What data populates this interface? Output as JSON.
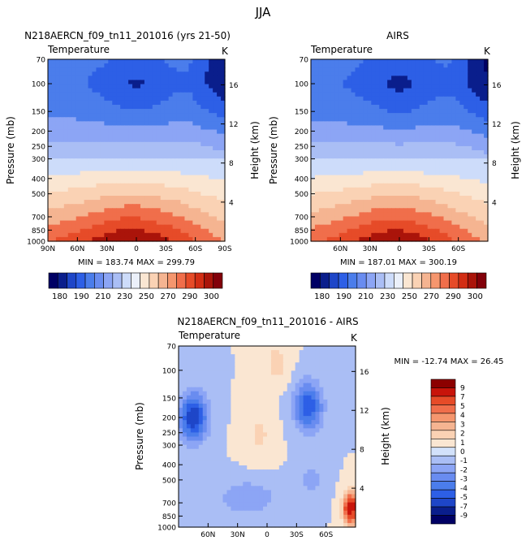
{
  "suptitle": "JJA",
  "chart_data": [
    {
      "type": "heatmap",
      "title": "N218AERCN_f09_tn11_201016 (yrs 21-50)",
      "subtitle_left": "Temperature",
      "subtitle_right": "K",
      "ylabel": "Pressure (mb)",
      "ylabel_right": "Height (km)",
      "x_ticks": [
        "90N",
        "60N",
        "30N",
        "0",
        "30S",
        "60S",
        "90S"
      ],
      "y_ticks": [
        "70",
        "100",
        "150",
        "200",
        "250",
        "300",
        "400",
        "500",
        "700",
        "850",
        "1000"
      ],
      "y_right_ticks": [
        "16",
        "12",
        "8",
        "4"
      ],
      "stats": "MIN = 183.74   MAX = 299.79",
      "levels": [
        180,
        190,
        200,
        210,
        220,
        230,
        240,
        250,
        260,
        270,
        280,
        290,
        300
      ],
      "colorbar_labels": [
        "180",
        "190",
        "210",
        "230",
        "250",
        "270",
        "290",
        "300"
      ]
    },
    {
      "type": "heatmap",
      "title": "AIRS",
      "subtitle_left": "Temperature",
      "subtitle_right": "K",
      "ylabel": "Pressure (mb)",
      "ylabel_right": "Height (km)",
      "x_ticks": [
        "60N",
        "30N",
        "0",
        "30S",
        "60S"
      ],
      "y_ticks": [
        "70",
        "100",
        "150",
        "200",
        "250",
        "300",
        "400",
        "500",
        "700",
        "850",
        "1000"
      ],
      "y_right_ticks": [
        "16",
        "12",
        "8",
        "4"
      ],
      "stats": "MIN = 187.01   MAX = 300.19",
      "levels": [
        180,
        190,
        200,
        210,
        220,
        230,
        240,
        250,
        260,
        270,
        280,
        290,
        300
      ],
      "colorbar_labels": [
        "180",
        "190",
        "210",
        "230",
        "250",
        "270",
        "290",
        "300"
      ]
    },
    {
      "type": "heatmap",
      "title": "N218AERCN_f09_tn11_201016 - AIRS",
      "subtitle_left": "Temperature",
      "subtitle_right": "K",
      "ylabel": "Pressure (mb)",
      "ylabel_right": "Height (km)",
      "x_ticks": [
        "60N",
        "30N",
        "0",
        "30S",
        "60S"
      ],
      "y_ticks": [
        "70",
        "100",
        "150",
        "200",
        "250",
        "300",
        "400",
        "500",
        "700",
        "850",
        "1000"
      ],
      "y_right_ticks": [
        "16",
        "12",
        "8",
        "4"
      ],
      "stats": "MIN = -12.74   MAX =   26.45",
      "levels": [
        -9,
        -7,
        -5,
        -4,
        -3,
        -2,
        -1,
        0,
        1,
        2,
        3,
        4,
        5,
        7,
        9
      ],
      "colorbar_labels": [
        "9",
        "7",
        "5",
        "4",
        "3",
        "2",
        "1",
        "0",
        "-1",
        "-2",
        "-3",
        "-4",
        "-5",
        "-7",
        "-9"
      ]
    }
  ],
  "colors": {
    "abs_scale": [
      "#000064",
      "#0a1e8c",
      "#1e46c8",
      "#2d5fe6",
      "#4b7deb",
      "#698cf0",
      "#8ca5f5",
      "#aabef5",
      "#cddcfa",
      "#ebf0fa",
      "#fae6d2",
      "#fad2b4",
      "#f5b491",
      "#f5966e",
      "#f06e4b",
      "#e64b28",
      "#d22d14",
      "#aa140a",
      "#82000a"
    ],
    "diff_scale": [
      "#000064",
      "#0a1e8c",
      "#1e46c8",
      "#2d5fe6",
      "#4b7deb",
      "#698cf0",
      "#8ca5f5",
      "#aabef5",
      "#d2e1fa",
      "#fae6d2",
      "#fad2b4",
      "#f5b491",
      "#f5966e",
      "#f06e4b",
      "#e64b28",
      "#c8140a",
      "#8c0000"
    ]
  }
}
